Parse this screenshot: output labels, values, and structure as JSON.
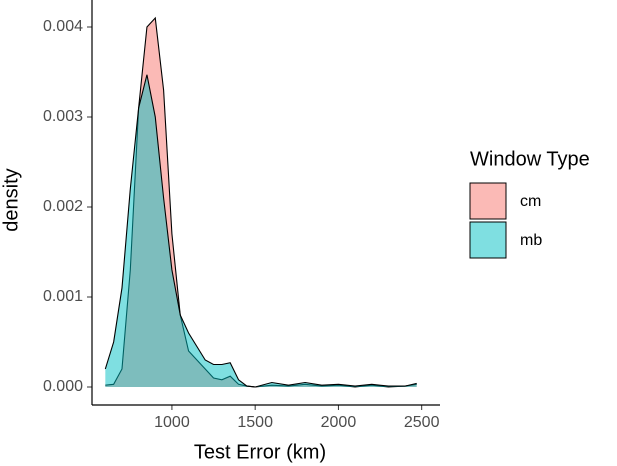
{
  "chart_data": {
    "type": "density",
    "x_label": "Test Error (km)",
    "y_label": "density",
    "legend_title": "Window Type",
    "x": [
      600,
      650,
      700,
      750,
      800,
      850,
      900,
      950,
      1000,
      1050,
      1100,
      1150,
      1200,
      1250,
      1300,
      1350,
      1400,
      1450,
      1500,
      1600,
      1700,
      1800,
      1900,
      2000,
      2100,
      2200,
      2300,
      2400,
      2470
    ],
    "series": [
      {
        "name": "cm",
        "color": "#F8766D",
        "values": [
          2e-05,
          3e-05,
          0.0002,
          0.0013,
          0.0031,
          0.004,
          0.0041,
          0.0033,
          0.0017,
          0.0008,
          0.0004,
          0.0003,
          0.0002,
          0.0001,
          8e-05,
          0.00012,
          3e-05,
          1e-05,
          0.0,
          2e-05,
          1e-05,
          3e-05,
          1e-05,
          2e-05,
          0.0,
          2e-05,
          0.0,
          1e-05,
          3e-05
        ]
      },
      {
        "name": "mb",
        "color": "#00BFC4",
        "values": [
          0.0002,
          0.0005,
          0.0011,
          0.0022,
          0.0031,
          0.00347,
          0.003,
          0.0021,
          0.0013,
          0.0008,
          0.0006,
          0.00045,
          0.0003,
          0.00025,
          0.00025,
          0.00027,
          8e-05,
          1e-05,
          0.0,
          5e-05,
          2e-05,
          5e-05,
          2e-05,
          3e-05,
          1e-05,
          3e-05,
          1e-05,
          1e-05,
          4e-05
        ]
      }
    ],
    "xlim": [
      520,
      2610
    ],
    "xticks": [
      1000,
      1500,
      2000,
      2500
    ],
    "ylim": [
      -0.0002,
      0.0043
    ],
    "yticks": [
      {
        "value": 0,
        "label": "0.000"
      },
      {
        "value": 0.001,
        "label": "0.001"
      },
      {
        "value": 0.002,
        "label": "0.002"
      },
      {
        "value": 0.003,
        "label": "0.003"
      },
      {
        "value": 0.004,
        "label": "0.004"
      }
    ],
    "fill_opacity": 0.5
  }
}
